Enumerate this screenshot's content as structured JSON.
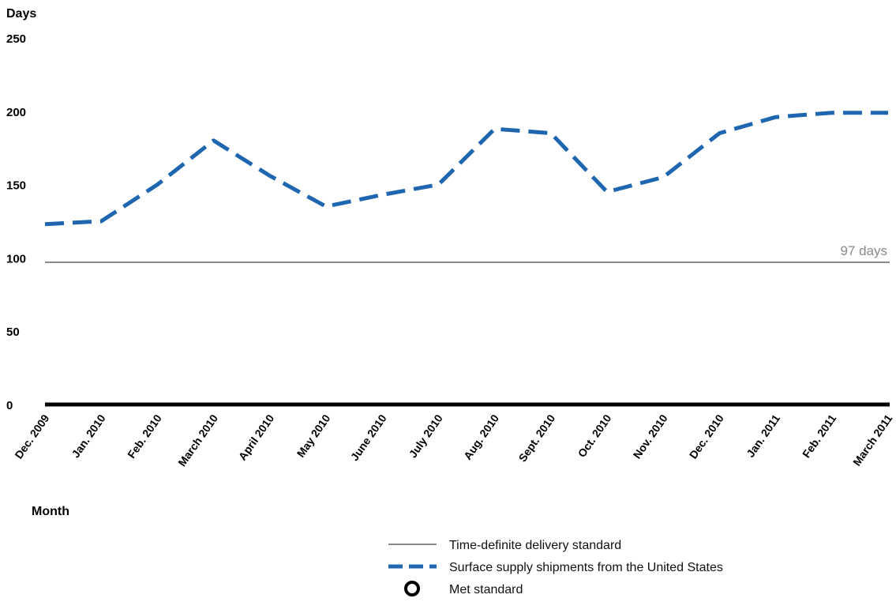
{
  "chart_data": {
    "type": "line",
    "ylabel": "Days",
    "xlabel": "Month",
    "ylim": [
      0,
      250
    ],
    "yticks": [
      0,
      50,
      100,
      150,
      200,
      250
    ],
    "grid": false,
    "categories": [
      "Dec. 2009",
      "Jan. 2010",
      "Feb. 2010",
      "March 2010",
      "April 2010",
      "May 2010",
      "June 2010",
      "July 2010",
      "Aug. 2010",
      "Sept. 2010",
      "Oct. 2010",
      "Nov. 2010",
      "Dec. 2010",
      "Jan. 2011",
      "Feb. 2011",
      "March 2011"
    ],
    "series": [
      {
        "name": "Surface supply shipments from the United States",
        "color": "#1f66b1",
        "style": "dashed",
        "values": [
          123,
          125,
          150,
          180,
          156,
          135,
          143,
          150,
          188,
          185,
          145,
          155,
          185,
          196,
          199,
          199
        ]
      }
    ],
    "reference_line": {
      "name": "Time-definite delivery standard",
      "value": 97,
      "label": "97 days",
      "color": "#8a8a8a"
    },
    "legend": {
      "placement": "bottom-center",
      "items": [
        {
          "label": "Time-definite delivery standard",
          "marker": "solid-gray-line"
        },
        {
          "label": "Surface supply shipments from the United States",
          "marker": "dashed-blue-line"
        },
        {
          "label": "Met standard",
          "marker": "open-circle"
        }
      ]
    }
  }
}
